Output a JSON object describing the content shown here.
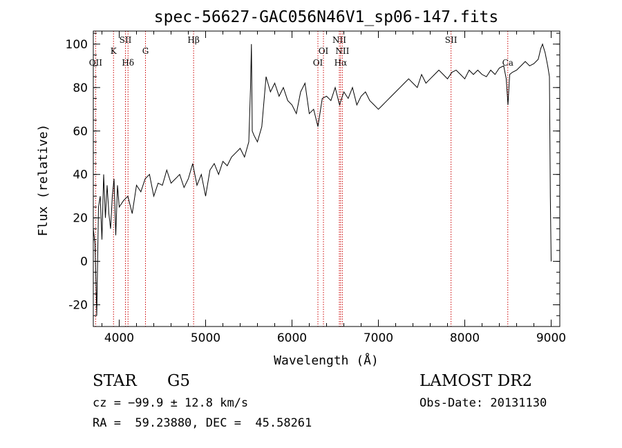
{
  "chart_data": {
    "type": "line",
    "title": "spec-56627-GAC056N46V1_sp06-147.fits",
    "xlabel": "Wavelength (Å)",
    "ylabel": "Flux (relative)",
    "xlim": [
      3700,
      9100
    ],
    "ylim": [
      -30,
      106
    ],
    "xticks": [
      4000,
      5000,
      6000,
      7000,
      8000,
      9000
    ],
    "yticks": [
      -20,
      0,
      20,
      40,
      60,
      80,
      100
    ],
    "x_minor_step": 200,
    "y_minor_step": 5,
    "series": [
      {
        "color": "#000000",
        "x": [
          3700,
          3720,
          3740,
          3760,
          3780,
          3800,
          3820,
          3840,
          3860,
          3880,
          3900,
          3920,
          3940,
          3960,
          3980,
          4000,
          4050,
          4100,
          4150,
          4200,
          4250,
          4300,
          4350,
          4400,
          4450,
          4500,
          4550,
          4600,
          4650,
          4700,
          4750,
          4800,
          4850,
          4900,
          4950,
          5000,
          5050,
          5100,
          5150,
          5200,
          5250,
          5300,
          5350,
          5400,
          5450,
          5500,
          5520,
          5530,
          5540,
          5560,
          5600,
          5650,
          5700,
          5750,
          5800,
          5850,
          5900,
          5950,
          6000,
          6050,
          6100,
          6150,
          6200,
          6250,
          6300,
          6350,
          6400,
          6450,
          6500,
          6550,
          6600,
          6650,
          6700,
          6750,
          6800,
          6850,
          6900,
          6950,
          7000,
          7050,
          7100,
          7150,
          7200,
          7250,
          7300,
          7350,
          7400,
          7450,
          7500,
          7550,
          7600,
          7650,
          7700,
          7750,
          7800,
          7850,
          7900,
          7950,
          8000,
          8050,
          8100,
          8150,
          8200,
          8250,
          8300,
          8350,
          8400,
          8450,
          8480,
          8500,
          8520,
          8550,
          8600,
          8650,
          8700,
          8750,
          8800,
          8850,
          8880,
          8900,
          8930,
          8960,
          8980,
          8990,
          9000
        ],
        "y": [
          15,
          8,
          -25,
          25,
          30,
          10,
          40,
          20,
          35,
          22,
          15,
          30,
          38,
          12,
          35,
          25,
          28,
          30,
          22,
          35,
          32,
          38,
          40,
          30,
          36,
          35,
          42,
          36,
          38,
          40,
          34,
          38,
          45,
          35,
          40,
          30,
          42,
          45,
          40,
          46,
          44,
          48,
          50,
          52,
          48,
          55,
          80,
          100,
          60,
          58,
          55,
          62,
          85,
          78,
          82,
          76,
          80,
          74,
          72,
          68,
          78,
          82,
          68,
          70,
          62,
          75,
          76,
          74,
          80,
          72,
          78,
          75,
          80,
          72,
          76,
          78,
          74,
          72,
          70,
          72,
          74,
          76,
          78,
          80,
          82,
          84,
          82,
          80,
          86,
          82,
          84,
          86,
          88,
          86,
          84,
          87,
          88,
          86,
          84,
          88,
          86,
          88,
          86,
          85,
          88,
          86,
          89,
          90,
          84,
          72,
          86,
          87,
          88,
          90,
          92,
          90,
          91,
          93,
          98,
          100,
          96,
          90,
          85,
          30,
          0
        ]
      }
    ],
    "line_markers": [
      {
        "label": "OII",
        "x": 3727,
        "row": 3
      },
      {
        "label": "K",
        "x": 3934,
        "row": 2
      },
      {
        "label": "SII",
        "x": 4072,
        "row": 1
      },
      {
        "label": "Hδ",
        "x": 4102,
        "row": 3
      },
      {
        "label": "G",
        "x": 4304,
        "row": 2
      },
      {
        "label": "Hβ",
        "x": 4861,
        "row": 1
      },
      {
        "label": "OI",
        "x": 6300,
        "row": 3
      },
      {
        "label": "OI",
        "x": 6364,
        "row": 2
      },
      {
        "label": "NII",
        "x": 6548,
        "row": 1
      },
      {
        "label": "Hα",
        "x": 6563,
        "row": 3
      },
      {
        "label": "NII",
        "x": 6583,
        "row": 2
      },
      {
        "label": "SII",
        "x": 7841,
        "row": 1
      },
      {
        "label": "Ca",
        "x": 8498,
        "row": 3
      }
    ],
    "marker_color": "#cc0000",
    "grid": false
  },
  "info": {
    "object_class": "STAR",
    "subclass": "G5",
    "cz": "cz = −99.9 ± 12.8 km/s",
    "coords": "RA =  59.23880, DEC =  45.58261",
    "survey": "LAMOST DR2",
    "obs_date": "Obs-Date: 20131130"
  }
}
